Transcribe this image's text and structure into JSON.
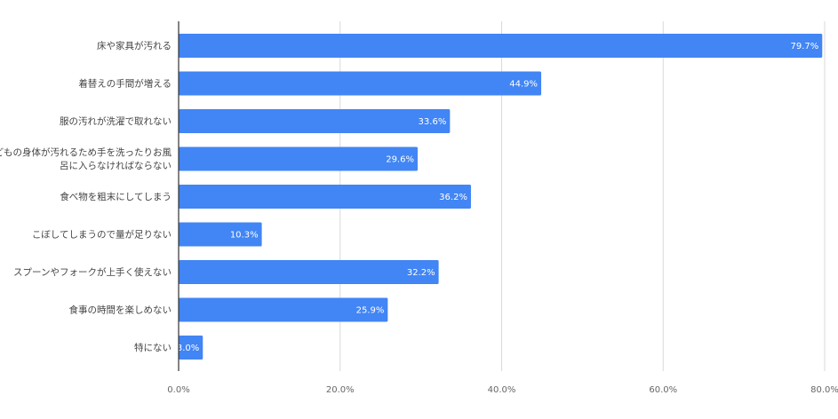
{
  "chart_data": {
    "type": "bar",
    "orientation": "horizontal",
    "title": "",
    "xlabel": "",
    "ylabel": "",
    "categories": [
      [
        "床や家具が汚れる"
      ],
      [
        "着替えの手間が増える"
      ],
      [
        "服の汚れが洗濯で取れない"
      ],
      [
        "子どもの身体が汚れるため手を洗ったりお風",
        "呂に入らなければならない"
      ],
      [
        "食べ物を粗末にしてしまう"
      ],
      [
        "こぼしてしまうので量が足りない"
      ],
      [
        "スプーンやフォークが上手く使えない"
      ],
      [
        "食事の時間を楽しめない"
      ],
      [
        "特にない"
      ]
    ],
    "values": [
      79.7,
      44.9,
      33.6,
      29.6,
      36.2,
      10.3,
      32.2,
      25.9,
      3.0
    ],
    "value_labels": [
      "79.7%",
      "44.9%",
      "33.6%",
      "29.6%",
      "36.2%",
      "10.3%",
      "32.2%",
      "25.9%",
      "3.0%"
    ],
    "xlim": [
      0,
      80
    ],
    "ticks": [
      0,
      20,
      40,
      60,
      80
    ],
    "tick_labels": [
      "0.0%",
      "20.0%",
      "40.0%",
      "60.0%",
      "80.0%"
    ],
    "grid": true,
    "legend": "none",
    "colors": {
      "bar": "#4285f4",
      "grid": "#d9d9d9",
      "axis": "#333333"
    }
  }
}
